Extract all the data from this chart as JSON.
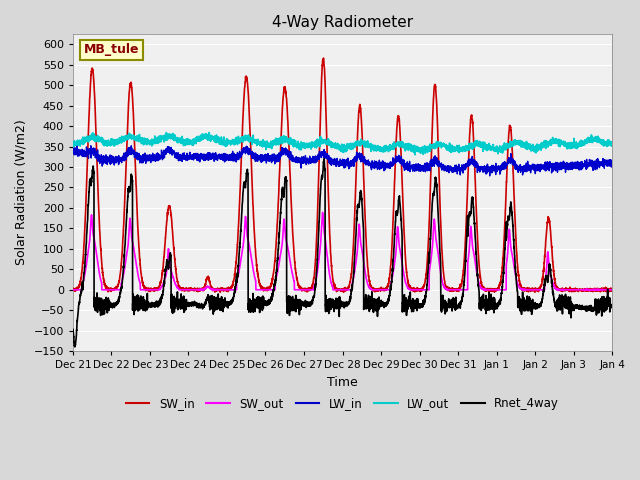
{
  "title": "4-Way Radiometer",
  "xlabel": "Time",
  "ylabel": "Solar Radiation (W/m2)",
  "ylim": [
    -150,
    625
  ],
  "yticks": [
    -150,
    -100,
    -50,
    0,
    50,
    100,
    150,
    200,
    250,
    300,
    350,
    400,
    450,
    500,
    550,
    600
  ],
  "station_label": "MB_tule",
  "station_label_color": "#8B0000",
  "station_box_facecolor": "#FFFFCC",
  "station_box_edgecolor": "#8B8B00",
  "background_color": "#E8E8E8",
  "plot_bg_color": "#F0F0F0",
  "grid_color": "#FFFFFF",
  "series": {
    "SW_in": {
      "color": "#CC0000",
      "lw": 1.2
    },
    "SW_out": {
      "color": "#FF00FF",
      "lw": 1.2
    },
    "LW_in": {
      "color": "#0000CC",
      "lw": 1.0
    },
    "LW_out": {
      "color": "#00CCCC",
      "lw": 1.2
    },
    "Rnet_4way": {
      "color": "#000000",
      "lw": 1.2
    }
  },
  "xtick_labels": [
    "Dec 21",
    "Dec 22",
    "Dec 23",
    "Dec 24",
    "Dec 25",
    "Dec 26",
    "Dec 27",
    "Dec 28",
    "Dec 29",
    "Dec 30",
    "Dec 31",
    "Jan 1",
    "Jan 2",
    "Jan 3",
    "Jan 4"
  ],
  "num_days": 14,
  "points_per_day": 288
}
